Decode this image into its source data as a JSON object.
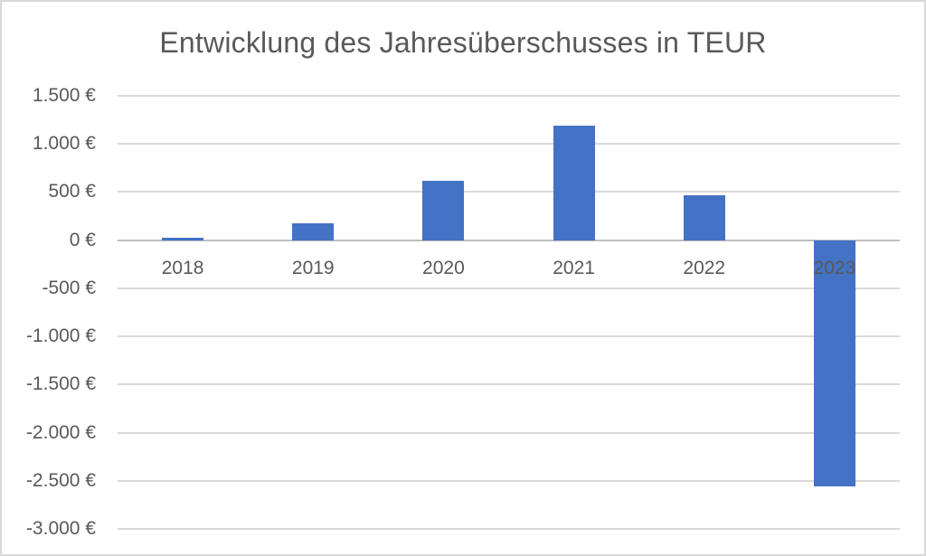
{
  "chart_data": {
    "type": "bar",
    "title": "Entwicklung des Jahresüberschusses in TEUR",
    "xlabel": "",
    "ylabel": "",
    "categories": [
      "2018",
      "2019",
      "2020",
      "2021",
      "2022",
      "2023"
    ],
    "values": [
      25,
      175,
      620,
      1190,
      470,
      -2560
    ],
    "ylim": [
      -3000,
      1500
    ],
    "ytick_step": 500,
    "yticks": [
      {
        "value": 1500,
        "label": "1.500 €"
      },
      {
        "value": 1000,
        "label": "1.000 €"
      },
      {
        "value": 500,
        "label": "500 €"
      },
      {
        "value": 0,
        "label": "0 €"
      },
      {
        "value": -500,
        "label": "-500 €"
      },
      {
        "value": -1000,
        "label": "-1.000 €"
      },
      {
        "value": -1500,
        "label": "-1.500 €"
      },
      {
        "value": -2000,
        "label": "-2.000 €"
      },
      {
        "value": -2500,
        "label": "-2.500 €"
      },
      {
        "value": -3000,
        "label": "-3.000 €"
      }
    ],
    "grid": true,
    "legend": false,
    "colors": {
      "bar": "#4472C4",
      "gridline": "#D9D9D9",
      "zero_axis": "#BFBFBF",
      "text": "#595959",
      "border": "#D9D9D9",
      "background": "#FFFFFF"
    }
  }
}
